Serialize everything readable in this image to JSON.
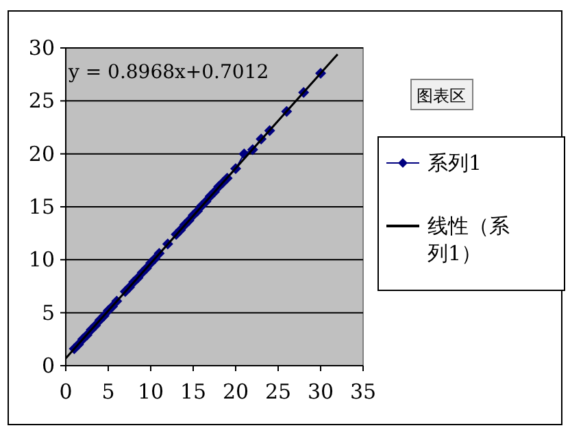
{
  "chart_data": {
    "type": "line",
    "xlim": [
      0,
      35
    ],
    "ylim": [
      0,
      30
    ],
    "xticks": [
      0,
      5,
      10,
      15,
      20,
      25,
      30,
      35
    ],
    "yticks": [
      0,
      5,
      10,
      15,
      20,
      25,
      30
    ],
    "grid": "y",
    "legend": "right",
    "annotations": [
      "y = 0.8968x+0.7012",
      "图表区"
    ],
    "series": [
      {
        "name": "系列1",
        "color": "#000080",
        "marker": "diamond",
        "x": [
          1,
          1.5,
          2,
          2.5,
          3,
          3.5,
          4,
          4.5,
          5,
          5.5,
          6,
          7,
          7.5,
          8,
          8.5,
          9,
          9.5,
          10,
          10.5,
          11,
          12,
          13,
          13.5,
          14,
          14.5,
          15,
          15.5,
          16,
          16.5,
          17,
          17.5,
          18,
          18.5,
          19,
          20,
          21,
          22,
          23,
          24,
          26,
          28,
          30
        ],
        "values": [
          1.6,
          2.0,
          2.5,
          2.9,
          3.4,
          3.8,
          4.3,
          4.7,
          5.2,
          5.6,
          6.1,
          7.0,
          7.4,
          7.9,
          8.3,
          8.8,
          9.2,
          9.7,
          10.1,
          10.6,
          11.5,
          12.4,
          12.8,
          13.3,
          13.7,
          14.2,
          14.6,
          15.1,
          15.5,
          16.0,
          16.4,
          16.9,
          17.3,
          17.7,
          18.6,
          20.0,
          20.4,
          21.4,
          22.2,
          24.0,
          25.8,
          27.6
        ]
      },
      {
        "name": "线性（系列1）",
        "color": "#000000",
        "marker": "none",
        "x": [
          0,
          32
        ],
        "values": [
          0.7,
          29.4
        ]
      }
    ]
  }
}
